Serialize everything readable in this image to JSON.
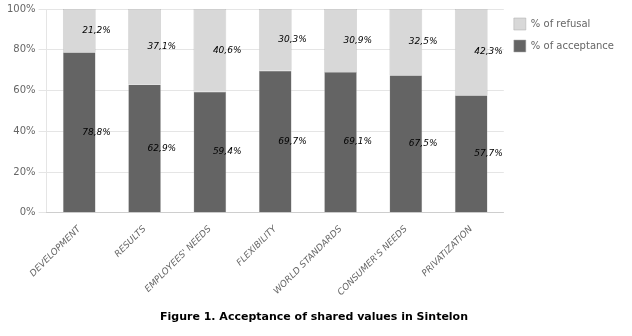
{
  "chart_data": {
    "type": "bar",
    "stacked": true,
    "title": "Figure 1. Acceptance of shared values in Sintelon",
    "categories": [
      "DEVELOPMENT",
      "RESULTS",
      "EMPLOYEES' NEEDS",
      "FLEXIBILITY",
      "WORLD STANDARDS",
      "CONSUMER'S NEEDS",
      "PRIVATIZATION"
    ],
    "series": [
      {
        "name": "% of acceptance",
        "color": "#646464",
        "values": [
          78.8,
          62.9,
          59.4,
          69.7,
          69.1,
          67.5,
          57.7
        ],
        "value_labels": [
          "78,8%",
          "62,9%",
          "59,4%",
          "69,7%",
          "69,1%",
          "67,5%",
          "57,7%"
        ]
      },
      {
        "name": "% of refusal",
        "color": "#d8d8d8",
        "values": [
          21.2,
          37.1,
          40.6,
          30.3,
          30.9,
          32.5,
          42.3
        ],
        "value_labels": [
          "21,2%",
          "37,1%",
          "40,6%",
          "30,3%",
          "30,9%",
          "32,5%",
          "42,3%"
        ]
      }
    ],
    "ylim": [
      0,
      100
    ],
    "yticks": [
      {
        "value": 0,
        "label": "0%"
      },
      {
        "value": 20,
        "label": "20%"
      },
      {
        "value": 40,
        "label": "40%"
      },
      {
        "value": 60,
        "label": "60%"
      },
      {
        "value": 80,
        "label": "80%"
      },
      {
        "value": 100,
        "label": "100%"
      }
    ],
    "grid": true,
    "legend": "right",
    "data_labels": true
  }
}
